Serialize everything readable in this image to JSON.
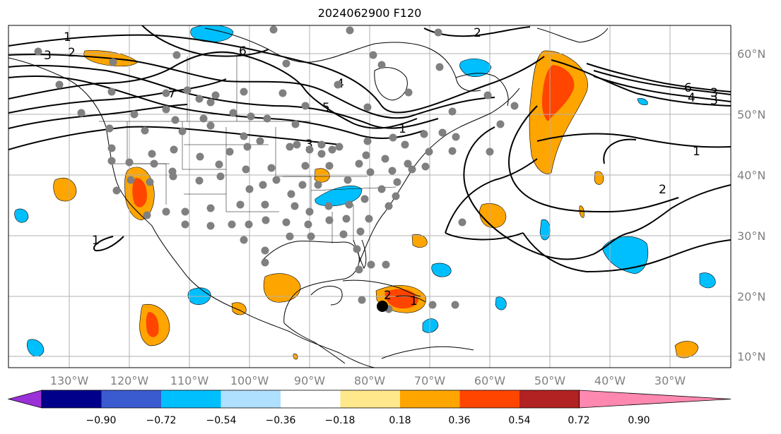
{
  "title": "2024062900 F120",
  "longitude_labels": [
    "130°W",
    "120°W",
    "110°W",
    "100°W",
    "90°W",
    "80°W",
    "70°W",
    "60°W",
    "50°W",
    "40°W",
    "30°W"
  ],
  "latitude_labels": [
    "60°N",
    "50°N",
    "40°N",
    "30°N",
    "20°N",
    "10°N"
  ],
  "contour_labels": [
    "1",
    "2",
    "3",
    "6",
    "7",
    "4",
    "5",
    "3",
    "1",
    "6",
    "4",
    "3",
    "3",
    "1",
    "2",
    "1",
    "2",
    "2",
    "1"
  ],
  "colorbar": {
    "tick_labels": [
      "−0.90",
      "−0.72",
      "−0.54",
      "−0.36",
      "−0.18",
      "0.18",
      "0.36",
      "0.54",
      "0.72",
      "0.90"
    ],
    "colors": [
      "#9b30d9",
      "#00008b",
      "#3a5bd0",
      "#00bfff",
      "#b0e0ff",
      "#ffffff",
      "#ffe88c",
      "#ffa500",
      "#ff4500",
      "#b22222",
      "#ff88b0"
    ]
  }
}
